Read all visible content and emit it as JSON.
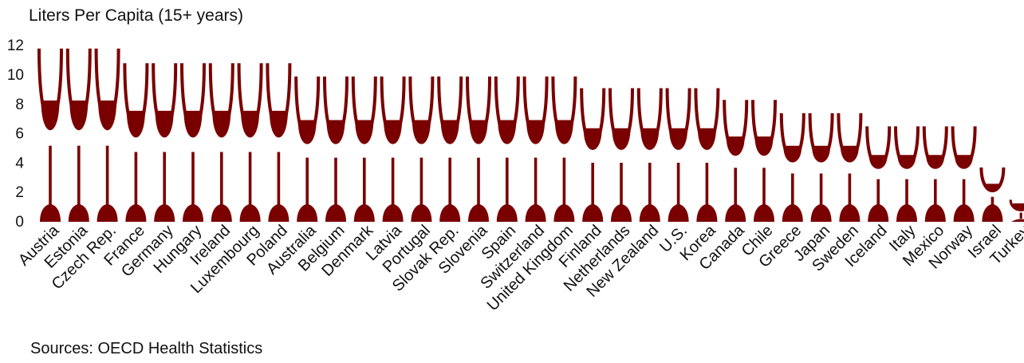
{
  "chart_data": {
    "type": "bar",
    "ylabel": "Liters Per Capita (15+ years)",
    "ylim": [
      0,
      12
    ],
    "yticks": [
      0,
      2,
      4,
      6,
      8,
      10,
      12
    ],
    "grid": false,
    "legend": "none",
    "mark_style": "wine-glass",
    "categories": [
      "Austria",
      "Estonia",
      "Czech Rep.",
      "France",
      "Germany",
      "Hungary",
      "Ireland",
      "Luxembourg",
      "Poland",
      "Australia",
      "Belgium",
      "Denmark",
      "Latvia",
      "Portugal",
      "Slovak Rep.",
      "Slovenia",
      "Spain",
      "Switzerland",
      "United Kingdom",
      "Finland",
      "Netherlands",
      "New Zealand",
      "U.S.",
      "Korea",
      "Canada",
      "Chile",
      "Greece",
      "Japan",
      "Sweden",
      "Iceland",
      "Italy",
      "Mexico",
      "Norway",
      "Israel",
      "Turkey"
    ],
    "values": [
      11.8,
      11.8,
      11.8,
      10.8,
      10.8,
      10.8,
      10.8,
      10.8,
      10.8,
      9.9,
      9.9,
      9.9,
      9.9,
      9.9,
      9.9,
      9.9,
      9.9,
      9.9,
      9.9,
      9.1,
      9.1,
      9.1,
      9.1,
      9.1,
      8.3,
      8.3,
      7.4,
      7.4,
      7.4,
      6.5,
      6.5,
      6.5,
      6.5,
      3.7,
      1.5
    ],
    "colors": {
      "bar": "#7a0000",
      "axis_text": "#111111"
    }
  },
  "source_note": "Sources: OECD Health Statistics"
}
